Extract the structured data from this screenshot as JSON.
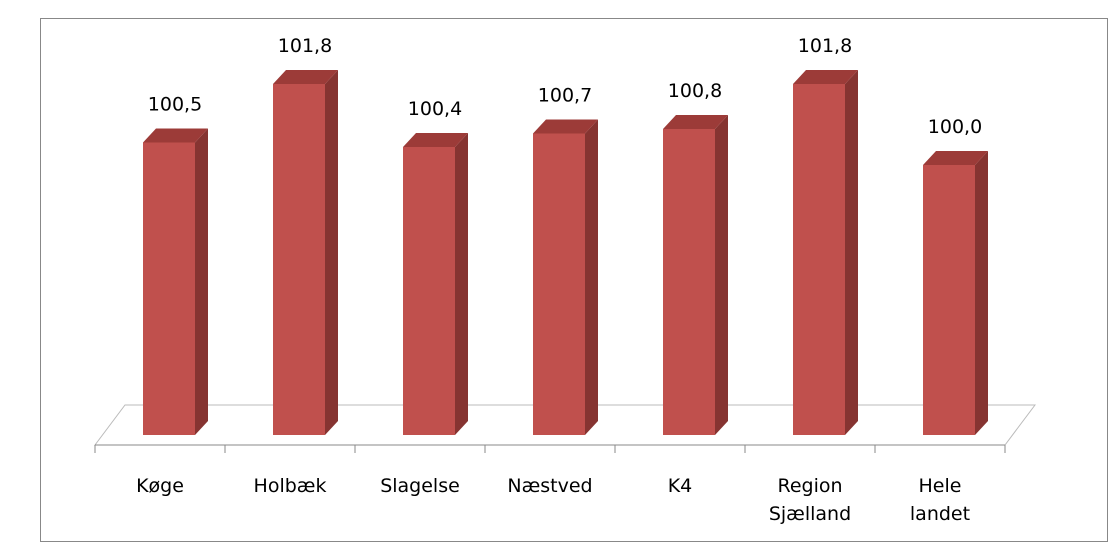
{
  "chart_data": {
    "type": "bar3d",
    "categories": [
      "Køge",
      "Holbæk",
      "Slagelse",
      "Næstved",
      "K4",
      "Region\nSjælland",
      "Hele\nlandet"
    ],
    "values": [
      100.5,
      101.8,
      100.4,
      100.7,
      100.8,
      101.8,
      100.0
    ],
    "value_labels": [
      "100,5",
      "101,8",
      "100,4",
      "100,7",
      "100,8",
      "101,8",
      "100,0"
    ],
    "color": "#c0504d",
    "ylim": [
      94,
      102
    ]
  }
}
